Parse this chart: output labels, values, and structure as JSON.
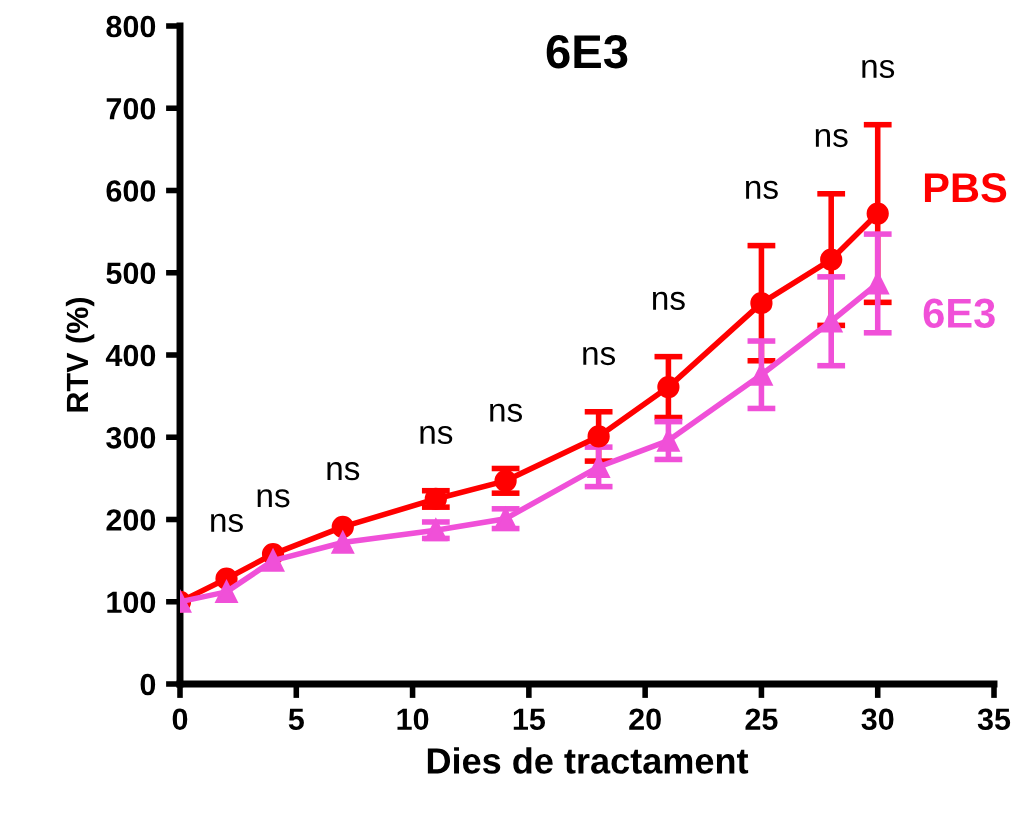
{
  "chart_data": {
    "type": "line",
    "title": "6E3",
    "xlabel": "Dies de tractament",
    "ylabel": "RTV (%)",
    "xlim": [
      0,
      35
    ],
    "xticks": [
      0,
      5,
      10,
      15,
      20,
      25,
      30,
      35
    ],
    "ylim": [
      0,
      800
    ],
    "yticks": [
      0,
      100,
      200,
      300,
      400,
      500,
      600,
      700,
      800
    ],
    "grid": false,
    "legend": false,
    "series": [
      {
        "name": "PBS",
        "color": "#ff0000",
        "marker": "circle",
        "x": [
          0,
          2,
          4,
          7,
          11,
          14,
          18,
          21,
          25,
          28,
          30
        ],
        "values": [
          100,
          128,
          158,
          191,
          225,
          247,
          301,
          361,
          463,
          516,
          572
        ],
        "errors": [
          null,
          null,
          null,
          null,
          10,
          15,
          30,
          37,
          70,
          80,
          108
        ]
      },
      {
        "name": "6E3",
        "color": "#f050d8",
        "marker": "triangle",
        "x": [
          0,
          2,
          4,
          7,
          11,
          14,
          18,
          21,
          25,
          28,
          30
        ],
        "values": [
          100,
          112,
          150,
          172,
          187,
          201,
          264,
          296,
          376,
          441,
          487
        ],
        "errors": [
          null,
          null,
          null,
          null,
          10,
          12,
          24,
          23,
          41,
          54,
          60
        ]
      }
    ],
    "annotations": [
      "ns",
      "ns",
      "ns",
      "ns",
      "ns",
      "ns",
      "ns",
      "ns",
      "ns",
      "ns"
    ]
  }
}
